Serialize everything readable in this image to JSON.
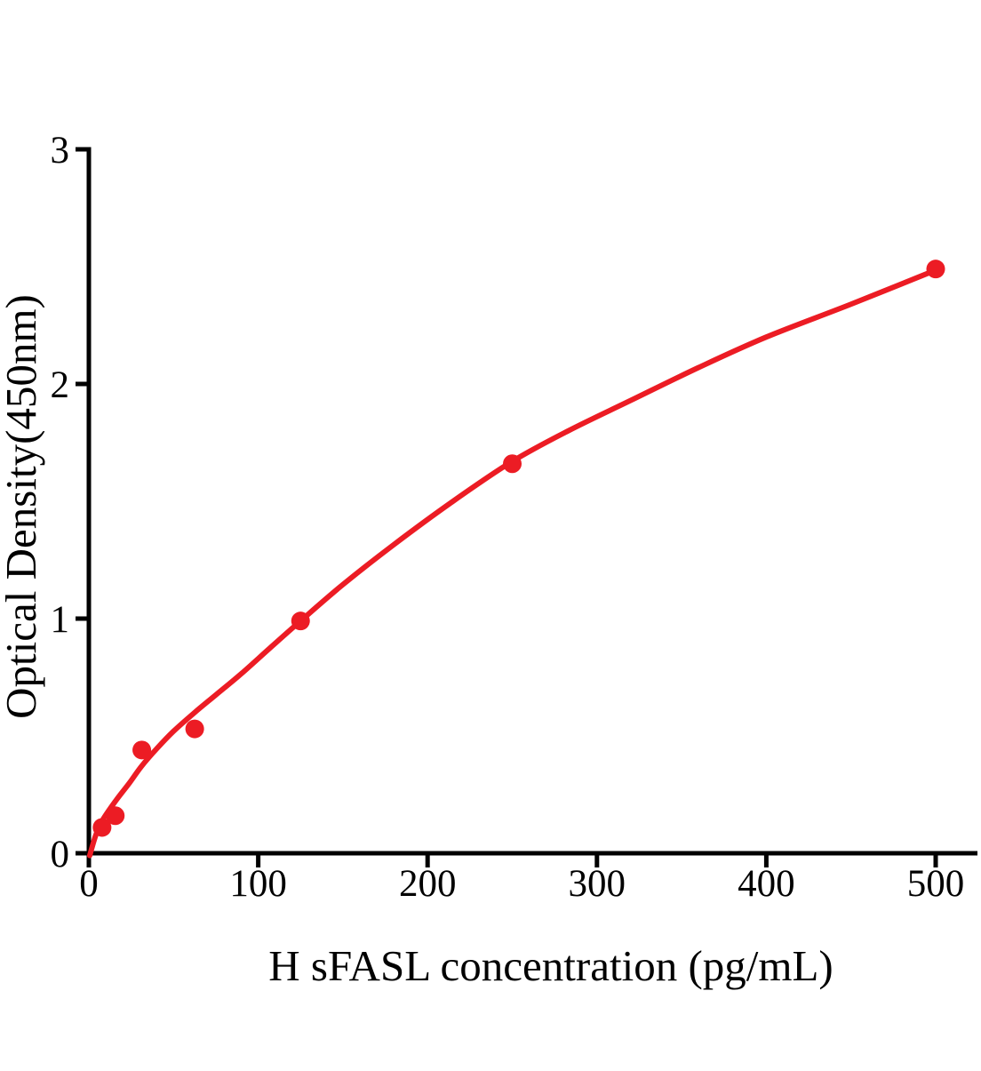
{
  "chart_data": {
    "type": "scatter",
    "title": "",
    "xlabel": "H sFASL concentration (pg/mL)",
    "ylabel": "Optical Density(450nm)",
    "x_ticks": [
      0,
      100,
      200,
      300,
      400,
      500
    ],
    "y_ticks": [
      0,
      1,
      2,
      3
    ],
    "xlim": [
      0,
      525
    ],
    "ylim": [
      0,
      3
    ],
    "grid": false,
    "legend": "none",
    "axis_color": "#000000",
    "accent_color": "#ec1c24",
    "series": [
      {
        "name": "standard-points",
        "type": "scatter",
        "marker": "circle",
        "color": "#ec1c24",
        "x": [
          7.8,
          15.6,
          31.25,
          62.5,
          125,
          250,
          500
        ],
        "y": [
          0.11,
          0.16,
          0.44,
          0.53,
          0.99,
          1.66,
          2.49
        ]
      },
      {
        "name": "fitted-curve",
        "type": "line",
        "color": "#ec1c24",
        "points": [
          [
            0.5,
            -0.01
          ],
          [
            4,
            0.075
          ],
          [
            8,
            0.14
          ],
          [
            16,
            0.225
          ],
          [
            24,
            0.3
          ],
          [
            31,
            0.37
          ],
          [
            40,
            0.445
          ],
          [
            50,
            0.52
          ],
          [
            62.5,
            0.6
          ],
          [
            75,
            0.675
          ],
          [
            90,
            0.765
          ],
          [
            107,
            0.875
          ],
          [
            125,
            0.99
          ],
          [
            150,
            1.145
          ],
          [
            180,
            1.315
          ],
          [
            215,
            1.5
          ],
          [
            250,
            1.67
          ],
          [
            283,
            1.8
          ],
          [
            320,
            1.93
          ],
          [
            360,
            2.07
          ],
          [
            400,
            2.2
          ],
          [
            450,
            2.34
          ],
          [
            500,
            2.485
          ]
        ]
      }
    ]
  }
}
